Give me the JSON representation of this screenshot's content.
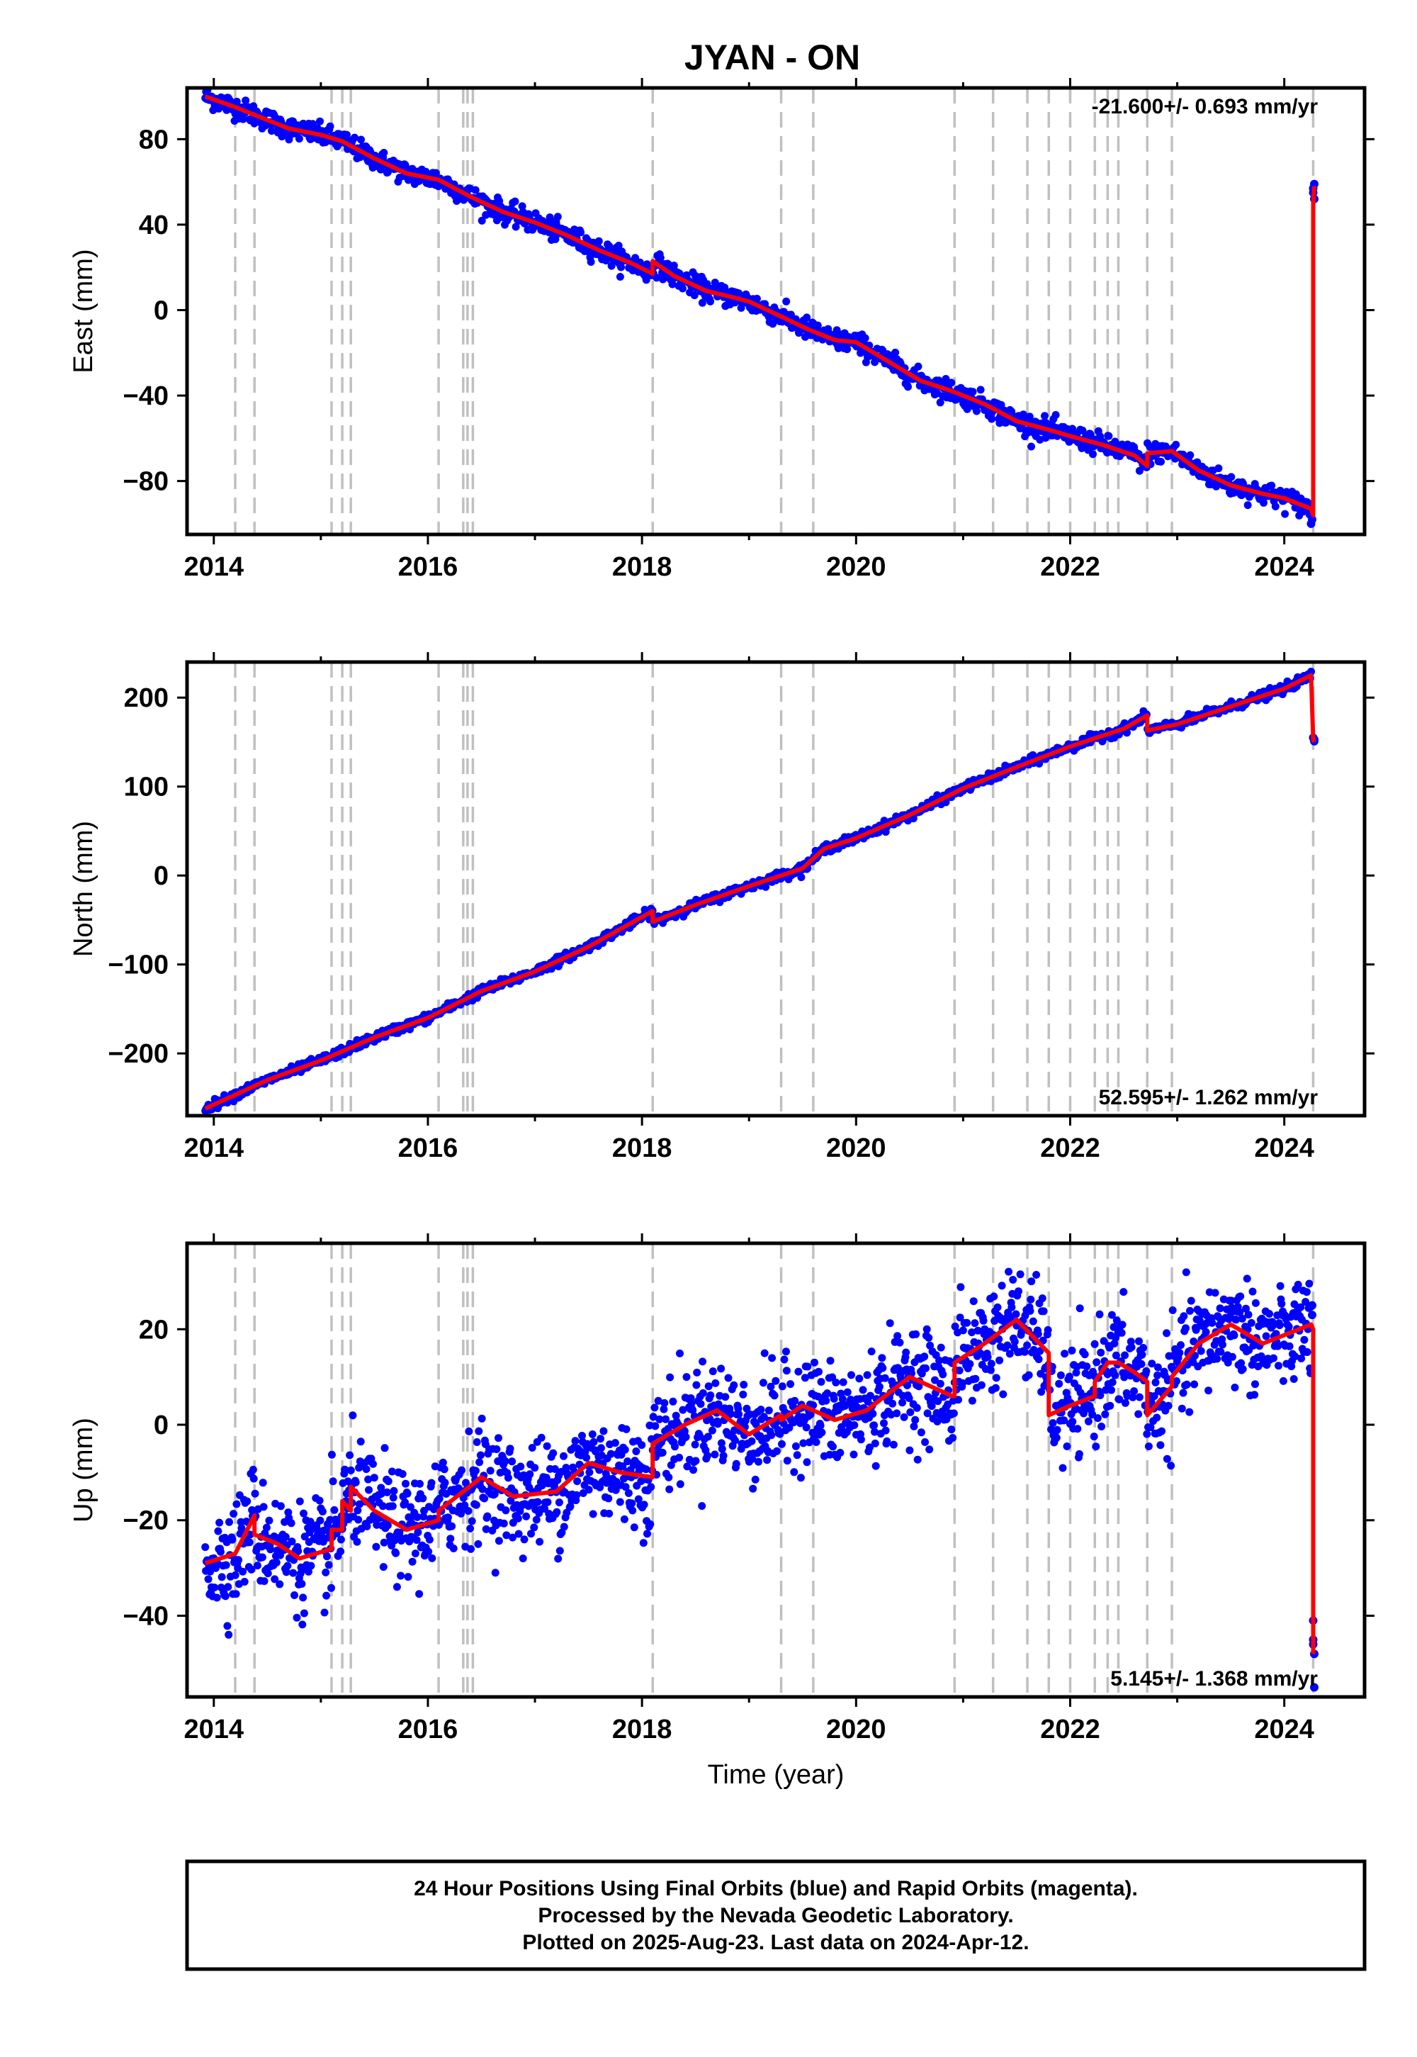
{
  "title": "JYAN - ON",
  "colors": {
    "final_points": "#0000ff",
    "rapid_points": "#ff00ff",
    "model_line": "#ff0000",
    "event_lines": "#c0c0c0",
    "frame": "#000000"
  },
  "footer": {
    "line1": "24 Hour Positions Using Final Orbits (blue) and Rapid Orbits (magenta).",
    "line2": "Processed by the Nevada Geodetic Laboratory.",
    "line3": "Plotted on 2025-Aug-23. Last data on 2024-Apr-12."
  },
  "chart_data": [
    {
      "type": "scatter",
      "component": "east",
      "ylabel": "East (mm)",
      "xlabel": "",
      "rate_label": "-21.600+/- 0.693 mm/yr",
      "rate_position": "top-right",
      "xlim": [
        2013.75,
        2024.75
      ],
      "ylim": [
        -105,
        104
      ],
      "xticks": [
        2014,
        2016,
        2018,
        2020,
        2022,
        2024
      ],
      "xtick_labels": [
        "2014",
        "2016",
        "2018",
        "2020",
        "2022",
        "2024"
      ],
      "yticks": [
        80,
        40,
        0,
        -40,
        -80
      ],
      "ytick_labels": [
        "80",
        "40",
        "0",
        "−40",
        "−80"
      ],
      "grid": false,
      "event_lines": [
        2014.2,
        2014.38,
        2015.1,
        2015.2,
        2015.28,
        2016.1,
        2016.33,
        2016.37,
        2016.42,
        2018.1,
        2019.3,
        2019.6,
        2020.92,
        2021.28,
        2021.6,
        2021.8,
        2022.0,
        2022.23,
        2022.35,
        2022.45,
        2022.72,
        2022.95,
        2024.27
      ],
      "model": {
        "x": [
          2013.92,
          2014.2,
          2014.5,
          2014.7,
          2015.0,
          2015.2,
          2015.5,
          2015.8,
          2016.1,
          2016.4,
          2016.7,
          2017.0,
          2017.3,
          2017.6,
          2017.9,
          2018.1,
          2018.1,
          2018.3,
          2018.6,
          2018.85,
          2019.0,
          2019.3,
          2019.55,
          2019.8,
          2020.0,
          2020.3,
          2020.6,
          2020.9,
          2021.2,
          2021.5,
          2021.8,
          2022.0,
          2022.3,
          2022.6,
          2022.72,
          2022.72,
          2022.95,
          2023.2,
          2023.5,
          2023.8,
          2024.0,
          2024.25,
          2024.27,
          2024.27,
          2024.28
        ],
        "y": [
          100,
          95,
          89,
          85,
          82,
          79,
          71,
          64,
          61,
          53,
          46,
          41,
          35,
          28,
          22,
          17,
          23,
          16,
          9,
          6,
          4,
          -3,
          -9,
          -14,
          -15,
          -24,
          -33,
          -38,
          -44,
          -52,
          -56,
          -59,
          -63,
          -68,
          -73,
          -67,
          -66,
          -75,
          -82,
          -86,
          -88,
          -93,
          -96,
          50,
          58
        ]
      },
      "points": {
        "scatter_sd": 2.5,
        "count": 1400,
        "end_cluster": [
          [
            2024.27,
            57
          ],
          [
            2024.28,
            59
          ],
          [
            2024.27,
            55
          ],
          [
            2024.28,
            52
          ],
          [
            2024.26,
            -98
          ],
          [
            2024.25,
            -100
          ]
        ]
      }
    },
    {
      "type": "scatter",
      "component": "north",
      "ylabel": "North (mm)",
      "xlabel": "",
      "rate_label": "52.595+/- 1.262 mm/yr",
      "rate_position": "bottom-right",
      "xlim": [
        2013.75,
        2024.75
      ],
      "ylim": [
        -270,
        240
      ],
      "xticks": [
        2014,
        2016,
        2018,
        2020,
        2022,
        2024
      ],
      "xtick_labels": [
        "2014",
        "2016",
        "2018",
        "2020",
        "2022",
        "2024"
      ],
      "yticks": [
        200,
        100,
        0,
        -100,
        -200
      ],
      "ytick_labels": [
        "200",
        "100",
        "0",
        "−100",
        "−200"
      ],
      "grid": false,
      "event_lines": [
        2014.2,
        2014.38,
        2015.1,
        2015.2,
        2015.28,
        2016.1,
        2016.33,
        2016.37,
        2016.42,
        2018.1,
        2019.3,
        2019.6,
        2020.92,
        2021.28,
        2021.6,
        2021.8,
        2022.0,
        2022.23,
        2022.35,
        2022.45,
        2022.72,
        2022.95,
        2024.27
      ],
      "model": {
        "x": [
          2013.92,
          2014.5,
          2015.0,
          2015.5,
          2016.0,
          2016.5,
          2017.0,
          2017.5,
          2018.1,
          2018.1,
          2018.5,
          2019.0,
          2019.5,
          2019.7,
          2020.0,
          2020.5,
          2021.0,
          2021.5,
          2022.0,
          2022.5,
          2022.72,
          2022.72,
          2023.0,
          2023.5,
          2024.0,
          2024.25,
          2024.27,
          2024.28
        ],
        "y": [
          -262,
          -230,
          -208,
          -182,
          -160,
          -130,
          -108,
          -80,
          -40,
          -52,
          -33,
          -12,
          8,
          30,
          42,
          68,
          98,
          122,
          145,
          165,
          180,
          163,
          170,
          190,
          210,
          225,
          153,
          150
        ]
      },
      "points": {
        "scatter_sd": 2.5,
        "count": 1400,
        "end_cluster": [
          [
            2024.27,
            155
          ],
          [
            2024.28,
            151
          ],
          [
            2024.28,
            153
          ]
        ]
      }
    },
    {
      "type": "scatter",
      "component": "up",
      "ylabel": "Up (mm)",
      "xlabel": "Time (year)",
      "rate_label": "5.145+/- 1.368 mm/yr",
      "rate_position": "bottom-right",
      "xlim": [
        2013.75,
        2024.75
      ],
      "ylim": [
        -57,
        38
      ],
      "xticks": [
        2014,
        2016,
        2018,
        2020,
        2022,
        2024
      ],
      "xtick_labels": [
        "2014",
        "2016",
        "2018",
        "2020",
        "2022",
        "2024"
      ],
      "yticks": [
        20,
        0,
        -20,
        -40
      ],
      "ytick_labels": [
        "20",
        "0",
        "−20",
        "−40"
      ],
      "grid": false,
      "event_lines": [
        2014.2,
        2014.38,
        2015.1,
        2015.2,
        2015.28,
        2016.1,
        2016.33,
        2016.37,
        2016.42,
        2018.1,
        2019.3,
        2019.6,
        2020.92,
        2021.28,
        2021.6,
        2021.8,
        2022.0,
        2022.23,
        2022.35,
        2022.45,
        2022.72,
        2022.95,
        2024.27
      ],
      "model": {
        "x": [
          2013.92,
          2014.2,
          2014.38,
          2014.38,
          2014.6,
          2014.8,
          2015.1,
          2015.1,
          2015.2,
          2015.2,
          2015.28,
          2015.28,
          2015.5,
          2015.8,
          2016.1,
          2016.1,
          2016.5,
          2016.8,
          2017.2,
          2017.5,
          2017.8,
          2018.1,
          2018.1,
          2018.4,
          2018.7,
          2019.0,
          2019.3,
          2019.3,
          2019.5,
          2019.6,
          2019.8,
          2020.1,
          2020.5,
          2020.9,
          2020.92,
          2020.92,
          2021.2,
          2021.5,
          2021.8,
          2021.8,
          2022.0,
          2022.23,
          2022.23,
          2022.35,
          2022.45,
          2022.6,
          2022.72,
          2022.72,
          2022.95,
          2022.95,
          2023.2,
          2023.5,
          2023.8,
          2024.25,
          2024.27,
          2024.27
        ],
        "y": [
          -29,
          -27,
          -19,
          -23,
          -25,
          -28,
          -26,
          -22,
          -22,
          -16,
          -18,
          -13,
          -18,
          -22,
          -20,
          -18,
          -11,
          -15,
          -14,
          -8,
          -10,
          -11,
          -4,
          0,
          3,
          -2,
          2,
          1,
          4,
          3,
          1,
          3,
          10,
          6,
          6,
          13,
          17,
          22,
          15,
          2,
          4,
          6,
          9,
          13,
          13,
          11,
          9,
          2,
          8,
          10,
          17,
          21,
          17,
          21,
          20,
          -48
        ]
      },
      "points": {
        "scatter_sd": 5.5,
        "count": 1800,
        "end_cluster": [
          [
            2024.27,
            -41
          ],
          [
            2024.27,
            -45
          ],
          [
            2024.27,
            -46
          ],
          [
            2024.28,
            -48
          ],
          [
            2024.28,
            -55
          ],
          [
            2024.26,
            25
          ],
          [
            2024.26,
            23
          ]
        ]
      }
    }
  ]
}
